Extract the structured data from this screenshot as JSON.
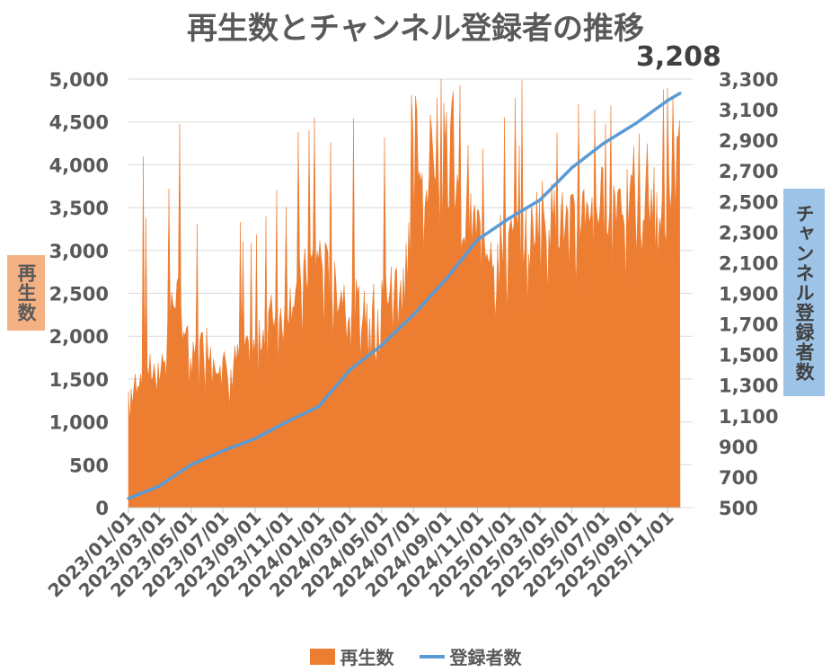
{
  "chart_data": {
    "type": "area",
    "title": "再生数とチャンネル登録者の推移",
    "y_left_label": "再生数",
    "y_right_label": "チャンネル登録者数",
    "latest_value_label": "3,208",
    "x_tick_labels": [
      "2023/01/01",
      "2023/03/01",
      "2023/05/01",
      "2023/07/01",
      "2023/09/01",
      "2023/11/01",
      "2024/01/01",
      "2024/03/01",
      "2024/05/01",
      "2024/07/01",
      "2024/09/01",
      "2024/11/01",
      "2025/01/01",
      "2025/03/01",
      "2025/05/01",
      "2025/07/01",
      "2025/09/01",
      "2025/11/01"
    ],
    "y_left_ticks": [
      "0",
      "500",
      "1,000",
      "1,500",
      "2,000",
      "2,500",
      "3,000",
      "3,500",
      "4,000",
      "4,500",
      "5,000"
    ],
    "y_right_ticks": [
      "500",
      "700",
      "900",
      "1,100",
      "1,300",
      "1,500",
      "1,700",
      "1,900",
      "2,100",
      "2,300",
      "2,500",
      "2,700",
      "2,900",
      "3,100",
      "3,300"
    ],
    "y_left_range": [
      0,
      5000
    ],
    "y_right_range": [
      500,
      3300
    ],
    "colors": {
      "views": "#ed7d31",
      "subscribers": "#5b9bd5",
      "grid": "#d9d9d9"
    },
    "grid": true,
    "legend_position": "bottom",
    "series": [
      {
        "name": "再生数",
        "kind": "area",
        "axis": "left",
        "x": [
          "2023/01/01",
          "2023/02/01",
          "2023/03/01",
          "2023/04/01",
          "2023/05/01",
          "2023/06/01",
          "2023/07/01",
          "2023/08/01",
          "2023/09/01",
          "2023/10/01",
          "2023/11/01",
          "2023/12/01",
          "2024/01/01",
          "2024/02/01",
          "2024/03/01",
          "2024/04/01",
          "2024/05/01",
          "2024/06/01",
          "2024/07/01",
          "2024/08/01",
          "2024/09/01",
          "2024/10/01",
          "2024/11/01",
          "2024/12/01",
          "2025/01/01",
          "2025/02/01",
          "2025/03/01",
          "2025/04/01",
          "2025/05/01",
          "2025/06/01",
          "2025/07/01",
          "2025/08/01",
          "2025/09/01",
          "2025/10/01",
          "2025/11/01",
          "2025/11/25"
        ],
        "values": [
          1300,
          1600,
          1500,
          2500,
          1700,
          1900,
          1600,
          1700,
          1800,
          2200,
          2300,
          2600,
          2900,
          2500,
          2400,
          2200,
          2400,
          2600,
          3300,
          4000,
          4600,
          3200,
          3200,
          3000,
          3000,
          3100,
          3400,
          3300,
          3200,
          3500,
          3500,
          3600,
          3300,
          3500,
          3500,
          4000
        ],
        "peak_values": [
          2200,
          4300,
          3600,
          4800,
          4100,
          3700,
          2900,
          3600,
          3300,
          3900,
          4200,
          4500,
          5000,
          4800,
          4700,
          4500,
          4600,
          4600,
          5000,
          5000,
          5000,
          5000,
          4800,
          4700,
          5000,
          5000,
          5000,
          5000,
          5000,
          5000,
          5000,
          4600,
          4700,
          4800,
          5000,
          5000
        ]
      },
      {
        "name": "登録者数",
        "kind": "line",
        "axis": "right",
        "x": [
          "2023/01/01",
          "2023/03/01",
          "2023/05/01",
          "2023/07/01",
          "2023/09/01",
          "2023/11/01",
          "2024/01/01",
          "2024/03/01",
          "2024/05/01",
          "2024/07/01",
          "2024/09/01",
          "2024/11/01",
          "2025/01/01",
          "2025/03/01",
          "2025/05/01",
          "2025/07/01",
          "2025/09/01",
          "2025/11/01",
          "2025/11/25"
        ],
        "values": [
          560,
          640,
          780,
          870,
          950,
          1060,
          1160,
          1400,
          1560,
          1760,
          1990,
          2250,
          2390,
          2510,
          2720,
          2880,
          3010,
          3160,
          3208
        ]
      }
    ]
  }
}
